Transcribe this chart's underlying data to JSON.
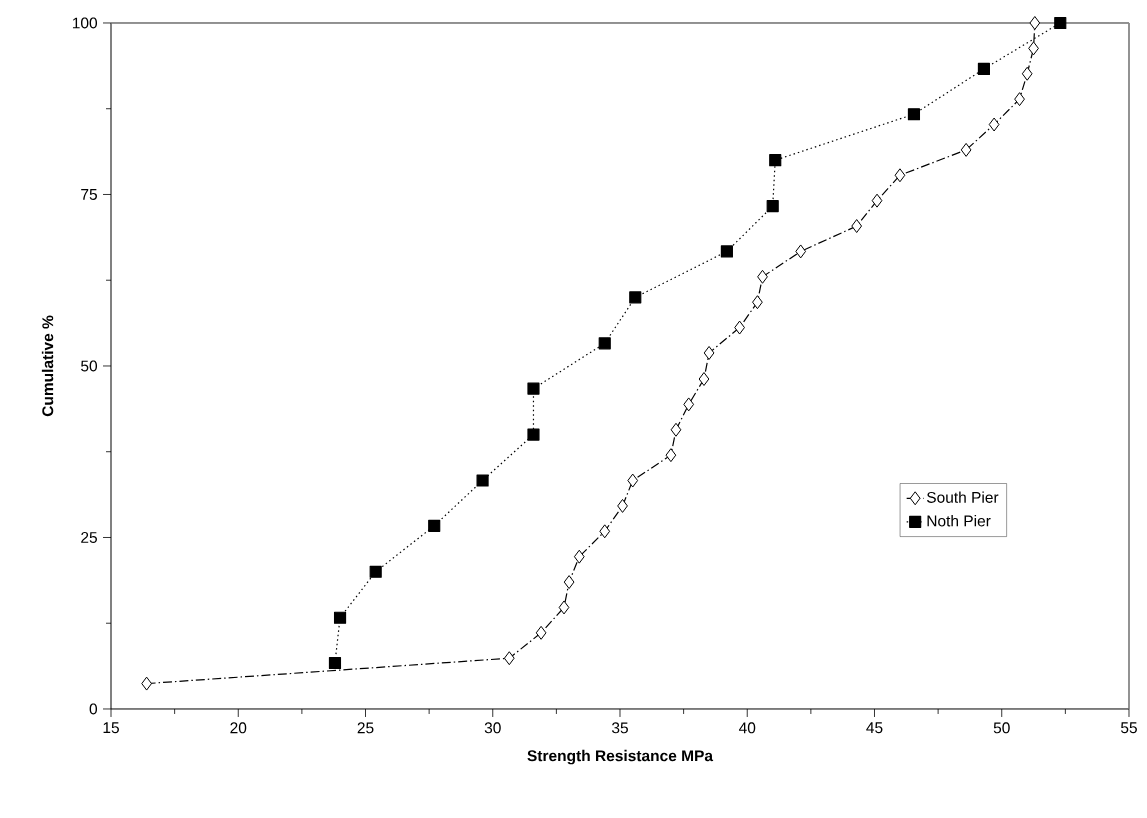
{
  "chart_data": {
    "type": "line",
    "xlabel": "Strength Resistance MPa",
    "ylabel": "Cumulative %",
    "xlim": [
      15,
      55
    ],
    "xticks": [
      15,
      20,
      25,
      30,
      35,
      40,
      45,
      50,
      55
    ],
    "ylim": [
      0,
      100
    ],
    "yticks": [
      0,
      25,
      50,
      75,
      100
    ],
    "grid": false,
    "legend": "right",
    "series": [
      {
        "name": "South Pier",
        "color": "#000000",
        "marker": "diamond",
        "line_style": "dashed",
        "x": [
          16.4,
          30.65,
          31.9,
          32.8,
          33.0,
          33.4,
          34.4,
          35.1,
          35.5,
          37.0,
          37.2,
          37.7,
          38.3,
          38.5,
          39.7,
          40.4,
          40.6,
          42.1,
          44.3,
          45.1,
          46.0,
          48.6,
          49.7,
          50.7,
          51.0,
          51.25,
          51.3
        ],
        "values": [
          3.7,
          7.4,
          11.1,
          14.8,
          18.5,
          22.2,
          25.9,
          29.6,
          33.3,
          37.0,
          40.7,
          44.4,
          48.1,
          51.9,
          55.6,
          59.3,
          63.0,
          66.7,
          70.4,
          74.1,
          77.8,
          81.5,
          85.2,
          88.9,
          92.6,
          96.3,
          100
        ]
      },
      {
        "name": "Noth Pier",
        "color": "#000000",
        "marker": "square",
        "line_style": "dotted",
        "x": [
          23.8,
          24.0,
          25.4,
          27.7,
          29.6,
          31.6,
          31.6,
          34.4,
          35.6,
          39.2,
          41.0,
          41.1,
          46.55,
          49.3,
          52.3
        ],
        "values": [
          6.7,
          13.3,
          20,
          26.7,
          33.3,
          40,
          46.7,
          53.3,
          60,
          66.7,
          73.3,
          80,
          86.7,
          93.3,
          100
        ]
      }
    ]
  }
}
